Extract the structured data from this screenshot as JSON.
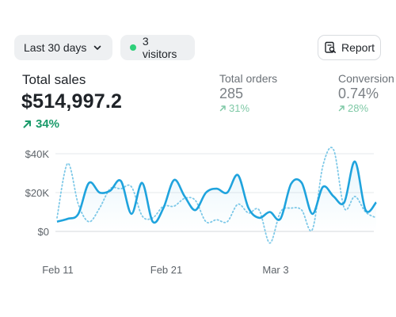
{
  "toolbar": {
    "range_label": "Last 30 days",
    "visitors_label": "3 visitors",
    "report_label": "Report",
    "colors": {
      "live_dot": "#2fd07a"
    }
  },
  "metrics": {
    "total_sales": {
      "label": "Total sales",
      "value": "$514,997.2",
      "change": "34%"
    },
    "total_orders": {
      "label": "Total orders",
      "value": "285",
      "change": "31%"
    },
    "conversion": {
      "label": "Conversion",
      "value": "0.74%",
      "change": "28%"
    }
  },
  "chart_data": {
    "type": "line",
    "title": "",
    "xlabel": "",
    "ylabel": "",
    "ylim": [
      -8000,
      48000
    ],
    "y_ticks": [
      "$0",
      "$20K",
      "$40K"
    ],
    "y_tick_values": [
      0,
      20000,
      40000
    ],
    "x_ticks": [
      "Feb 11",
      "Feb 21",
      "Mar 3"
    ],
    "grid": true,
    "colors": {
      "current": "#1fa3dd",
      "previous": "#7fc9e8"
    },
    "series": [
      {
        "style": "solid",
        "values": [
          5000,
          6500,
          9000,
          25000,
          20000,
          21000,
          26000,
          9000,
          25000,
          5000,
          12000,
          26500,
          18000,
          11000,
          20000,
          22000,
          20000,
          29000,
          12000,
          7000,
          10000,
          6500,
          24500,
          25000,
          9000,
          23000,
          18000,
          15000,
          36000,
          11000,
          15000
        ]
      },
      {
        "style": "dotted",
        "values": [
          7000,
          35000,
          14000,
          5000,
          12000,
          22000,
          22000,
          23000,
          8000,
          7000,
          13000,
          13000,
          17000,
          16000,
          5000,
          6000,
          5000,
          14000,
          9500,
          11000,
          -6000,
          10000,
          12000,
          11000,
          1000,
          34000,
          42000,
          12000,
          18000,
          10000,
          7000
        ]
      }
    ]
  }
}
